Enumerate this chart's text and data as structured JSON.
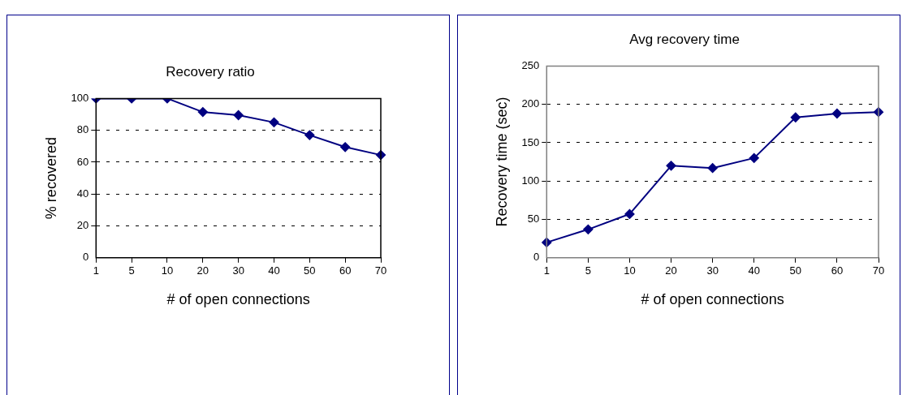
{
  "chart_data": [
    {
      "type": "line",
      "title": "Recovery ratio",
      "xlabel": "# of open connections",
      "ylabel": "% recovered",
      "categories": [
        "1",
        "5",
        "10",
        "20",
        "30",
        "40",
        "50",
        "60",
        "70"
      ],
      "series": [
        {
          "color": "#000080",
          "values": [
            100,
            100,
            100,
            91.5,
            89.5,
            85,
            77,
            69.5,
            64.5
          ]
        }
      ],
      "ylim": [
        0,
        100
      ],
      "yticks": [
        0,
        20,
        40,
        60,
        80,
        100
      ],
      "grid": "y",
      "marker": "diamond",
      "line_style": "solid"
    },
    {
      "type": "line",
      "title": "Avg recovery time",
      "xlabel": "# of open connections",
      "ylabel": "Recovery time (sec)",
      "categories": [
        "1",
        "5",
        "10",
        "20",
        "30",
        "40",
        "50",
        "60",
        "70"
      ],
      "series": [
        {
          "color": "#000080",
          "values": [
            20,
            37,
            57,
            120,
            117,
            130,
            183,
            188,
            190
          ]
        }
      ],
      "ylim": [
        0,
        250
      ],
      "yticks": [
        0,
        50,
        100,
        150,
        200,
        250
      ],
      "grid": "y",
      "marker": "diamond",
      "line_style": "solid"
    }
  ]
}
